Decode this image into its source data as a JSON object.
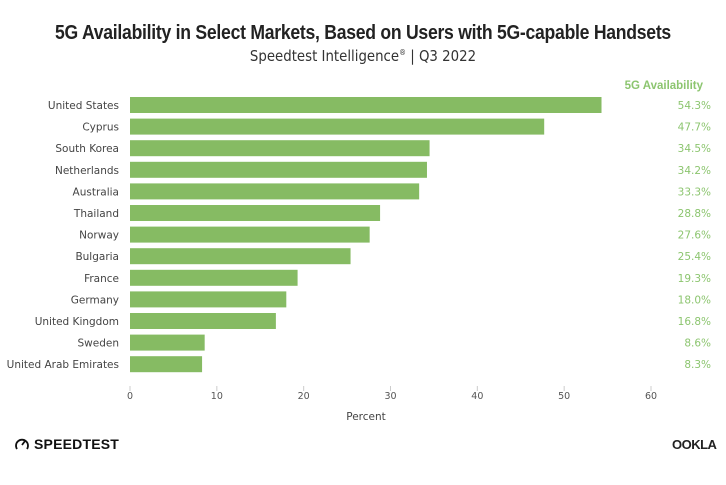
{
  "header": {
    "title": "5G Availability in Select Markets, Based on Users with 5G-capable Handsets",
    "subtitle_main": "Speedtest Intelligence",
    "subtitle_reg": "®",
    "subtitle_rest": " | Q3 2022"
  },
  "footer": {
    "left_logo": "SPEEDTEST",
    "right_logo": "OOKLA"
  },
  "colors": {
    "bar": "#86bb63",
    "value_text": "#8cc56f"
  },
  "chart_data": {
    "type": "bar",
    "orientation": "horizontal",
    "title": "5G Availability in Select Markets, Based on Users with 5G-capable Handsets",
    "subtitle": "Speedtest Intelligence® | Q3 2022",
    "categories": [
      "United States",
      "Cyprus",
      "South Korea",
      "Netherlands",
      "Australia",
      "Thailand",
      "Norway",
      "Bulgaria",
      "France",
      "Germany",
      "United Kingdom",
      "Sweden",
      "United Arab Emirates"
    ],
    "values": [
      54.3,
      47.7,
      34.5,
      34.2,
      33.3,
      28.8,
      27.6,
      25.4,
      19.3,
      18.0,
      16.8,
      8.6,
      8.3
    ],
    "value_labels": [
      "54.3%",
      "47.7%",
      "34.5%",
      "34.2%",
      "33.3%",
      "28.8%",
      "27.6%",
      "25.4%",
      "19.3%",
      "18.0%",
      "16.8%",
      "8.6%",
      "8.3%"
    ],
    "value_column_header": "5G Availability",
    "xlabel": "Percent",
    "ylabel": "",
    "xlim": [
      0,
      60
    ],
    "xticks": [
      0,
      10,
      20,
      30,
      40,
      50,
      60
    ],
    "grid": false,
    "legend": "none"
  }
}
